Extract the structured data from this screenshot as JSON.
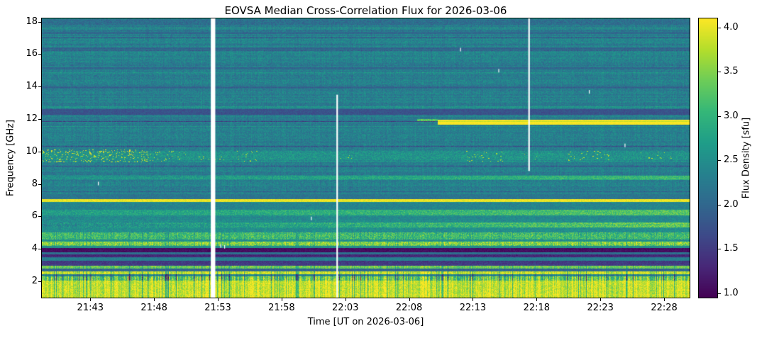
{
  "chart_data": {
    "type": "heatmap",
    "title": "EOVSA Median Cross-Correlation Flux for 2026-03-06",
    "xlabel": "Time [UT on 2026-03-06]",
    "ylabel": "Frequency [GHz]",
    "colorbar_label": "Flux Density [sfu]",
    "colormap": "viridis",
    "legend": "none",
    "x_range_min": [
      1299.2,
      1350.0
    ],
    "x_ticks": [
      {
        "label": "21:43",
        "min": 1303
      },
      {
        "label": "21:48",
        "min": 1308
      },
      {
        "label": "21:53",
        "min": 1313
      },
      {
        "label": "21:58",
        "min": 1318
      },
      {
        "label": "22:03",
        "min": 1323
      },
      {
        "label": "22:08",
        "min": 1328
      },
      {
        "label": "22:13",
        "min": 1333
      },
      {
        "label": "22:18",
        "min": 1338
      },
      {
        "label": "22:23",
        "min": 1343
      },
      {
        "label": "22:28",
        "min": 1348
      }
    ],
    "y_range_ghz": [
      1.0,
      18.2
    ],
    "y_ticks": [
      {
        "label": "2",
        "ghz": 2
      },
      {
        "label": "4",
        "ghz": 4
      },
      {
        "label": "6",
        "ghz": 6
      },
      {
        "label": "8",
        "ghz": 8
      },
      {
        "label": "10",
        "ghz": 10
      },
      {
        "label": "12",
        "ghz": 12
      },
      {
        "label": "14",
        "ghz": 14
      },
      {
        "label": "16",
        "ghz": 16
      },
      {
        "label": "18",
        "ghz": 18
      }
    ],
    "flux_range_sfu": [
      0.95,
      4.1
    ],
    "colorbar_ticks": [
      {
        "label": "1.0",
        "sfu": 1.0
      },
      {
        "label": "1.5",
        "sfu": 1.5
      },
      {
        "label": "2.0",
        "sfu": 2.0
      },
      {
        "label": "2.5",
        "sfu": 2.5
      },
      {
        "label": "3.0",
        "sfu": 3.0
      },
      {
        "label": "3.5",
        "sfu": 3.5
      },
      {
        "label": "4.0",
        "sfu": 4.0
      }
    ],
    "background_flux": 2.3,
    "bands": [
      {
        "f": [
          1.0,
          2.62
        ],
        "flux": 3.85,
        "noise": 0.3,
        "striate": 0.55
      },
      {
        "f": [
          2.05,
          2.32
        ],
        "flux": 3.35,
        "noise": 0.4,
        "striate": 1.15
      },
      {
        "f": [
          2.32,
          2.45
        ],
        "flux": 2.35,
        "noise": 0.3,
        "striate": 0.6
      },
      {
        "f": [
          2.62,
          2.8
        ],
        "flux": 2.05,
        "noise": 0.22
      },
      {
        "f": [
          2.8,
          2.98
        ],
        "flux": 3.4,
        "noise": 0.28,
        "striate": 0.35
      },
      {
        "f": [
          2.98,
          3.3
        ],
        "flux": 1.5,
        "noise": 0.2
      },
      {
        "f": [
          3.3,
          3.52
        ],
        "flux": 2.3,
        "noise": 0.2
      },
      {
        "f": [
          3.52,
          3.68
        ],
        "flux": 1.3,
        "noise": 0.15
      },
      {
        "f": [
          3.68,
          3.82
        ],
        "flux": 2.15,
        "noise": 0.2
      },
      {
        "f": [
          3.82,
          4.08
        ],
        "flux": 1.05,
        "noise": 0.12
      },
      {
        "f": [
          4.08,
          4.22
        ],
        "flux": 2.5,
        "noise": 0.22
      },
      {
        "f": [
          4.22,
          4.48
        ],
        "flux": 3.5,
        "noise": 0.45,
        "striate": 0.3
      },
      {
        "f": [
          4.48,
          4.62
        ],
        "flux": 2.45,
        "noise": 0.22
      },
      {
        "f": [
          4.62,
          5.05
        ],
        "flux": 3.1,
        "noise": 0.42,
        "striate": 0.25
      },
      {
        "f": [
          5.05,
          5.35
        ],
        "flux": 2.5,
        "noise": 0.25
      },
      {
        "f": [
          5.35,
          5.65
        ],
        "flux": 2.9,
        "noise": 0.38,
        "grad": 0.45
      },
      {
        "f": [
          5.65,
          6.1
        ],
        "flux": 2.45,
        "noise": 0.25
      },
      {
        "f": [
          6.1,
          6.45
        ],
        "flux": 3.0,
        "noise": 0.32,
        "grad": 0.3
      },
      {
        "f": [
          6.45,
          6.92
        ],
        "flux": 2.35,
        "noise": 0.22
      },
      {
        "f": [
          6.92,
          7.1
        ],
        "flux": 4.0,
        "noise": 0.15
      },
      {
        "f": [
          7.1,
          7.4
        ],
        "flux": 2.15,
        "noise": 0.2
      },
      {
        "f": [
          8.25,
          8.55
        ],
        "flux": 2.85,
        "noise": 0.28,
        "grad": 0.3
      },
      {
        "f": [
          9.35,
          10.05
        ],
        "flux": 2.55,
        "noise": 0.3
      },
      {
        "f": [
          11.9,
          12.02
        ],
        "flux": 3.3,
        "noise": 0.3,
        "t": [
          1328.6,
          1330.2
        ]
      },
      {
        "f": [
          11.68,
          11.98
        ],
        "flux": 4.1,
        "noise": 0.1,
        "t": [
          1330.2,
          1350.0
        ]
      },
      {
        "f": [
          12.3,
          12.62
        ],
        "flux": 1.75,
        "noise": 0.16
      },
      {
        "f": [
          13.9,
          14.04
        ],
        "flux": 1.95,
        "noise": 0.16
      },
      {
        "f": [
          15.08,
          15.2
        ],
        "flux": 2.0,
        "noise": 0.16
      },
      {
        "f": [
          16.3,
          16.44
        ],
        "flux": 1.95,
        "noise": 0.16
      },
      {
        "f": [
          17.25,
          17.38
        ],
        "flux": 2.0,
        "noise": 0.16
      },
      {
        "f": [
          17.8,
          18.2
        ],
        "flux": 2.1,
        "noise": 0.25
      }
    ],
    "speckle_clusters": [
      {
        "t": [
          1299.2,
          1307.5
        ],
        "f": [
          9.35,
          10.1
        ],
        "density": 0.28,
        "flux": 3.9
      },
      {
        "t": [
          1307.5,
          1310.5
        ],
        "f": [
          9.4,
          10.0
        ],
        "density": 0.1,
        "flux": 3.8
      },
      {
        "t": [
          1311.5,
          1313.5
        ],
        "f": [
          9.4,
          9.95
        ],
        "density": 0.07,
        "flux": 3.7
      },
      {
        "t": [
          1314.5,
          1316.5
        ],
        "f": [
          9.4,
          10.0
        ],
        "density": 0.09,
        "flux": 3.8
      },
      {
        "t": [
          1322.5,
          1324.0
        ],
        "f": [
          9.5,
          9.9
        ],
        "density": 0.05,
        "flux": 3.6
      },
      {
        "t": [
          1332.5,
          1335.5
        ],
        "f": [
          9.4,
          10.0
        ],
        "density": 0.1,
        "flux": 3.8
      },
      {
        "t": [
          1337.0,
          1338.2
        ],
        "f": [
          9.5,
          9.9
        ],
        "density": 0.05,
        "flux": 3.7
      },
      {
        "t": [
          1340.5,
          1344.0
        ],
        "f": [
          9.45,
          10.0
        ],
        "density": 0.09,
        "flux": 3.8
      },
      {
        "t": [
          1346.0,
          1348.5
        ],
        "f": [
          9.5,
          9.95
        ],
        "density": 0.06,
        "flux": 3.7
      }
    ],
    "data_gaps": [
      {
        "t": [
          1312.45,
          1312.8
        ],
        "f": [
          1.0,
          18.2
        ]
      },
      {
        "t": [
          1322.3,
          1322.42
        ],
        "f": [
          1.0,
          13.5
        ]
      },
      {
        "t": [
          1337.35,
          1337.47
        ],
        "f": [
          8.8,
          18.2
        ]
      }
    ],
    "white_marks": [
      {
        "min": 1303.6,
        "ghz": 8.05
      },
      {
        "min": 1313.2,
        "ghz": 4.2
      },
      {
        "min": 1313.5,
        "ghz": 4.15
      },
      {
        "min": 1335.0,
        "ghz": 15.0
      },
      {
        "min": 1342.1,
        "ghz": 13.7
      },
      {
        "min": 1344.9,
        "ghz": 10.4
      },
      {
        "min": 1320.3,
        "ghz": 5.9
      },
      {
        "min": 1332.0,
        "ghz": 16.3
      }
    ]
  }
}
